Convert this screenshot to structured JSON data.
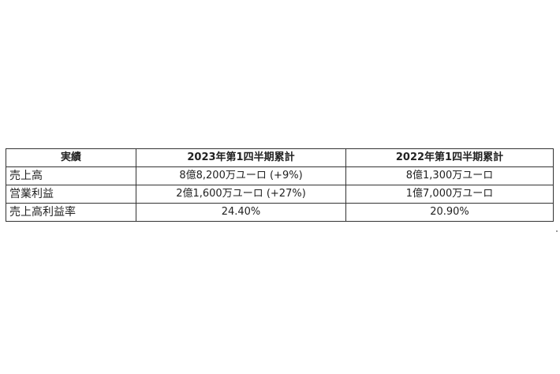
{
  "table": {
    "headers": [
      "実績",
      "2023年第1四半期累計",
      "2022年第1四半期累計"
    ],
    "rows": [
      [
        "売上高",
        "8億8,200万ユーロ (+9%)",
        "8億1,300万ユーロ"
      ],
      [
        "営業利益",
        "2億1,600万ユーロ (+27%)",
        "1億7,000万ユーロ"
      ],
      [
        "売上高利益率",
        "24.40%",
        "20.90%"
      ]
    ]
  }
}
